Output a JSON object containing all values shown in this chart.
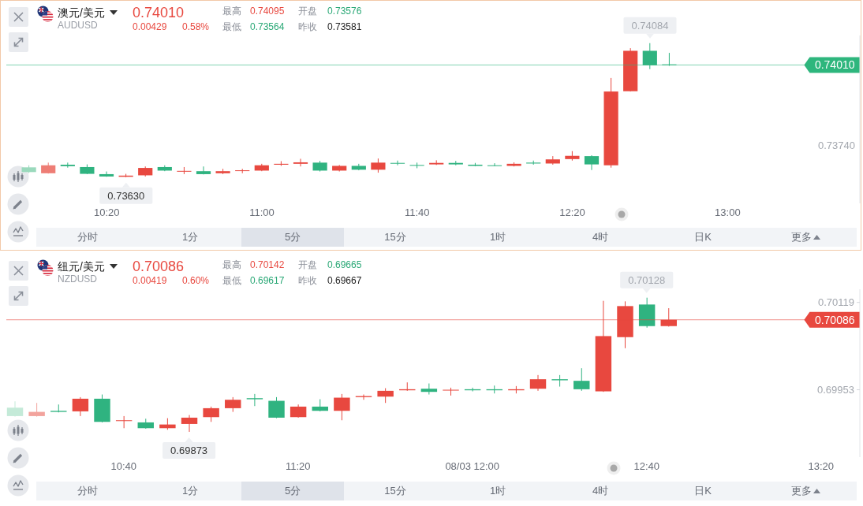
{
  "chart_data": [
    {
      "type": "candlestick",
      "title": "澳元/美元",
      "subtitle": "AUDUSD",
      "x": [
        10,
        10.0833,
        10.1667,
        10.25,
        10.3333,
        10.4167,
        10.5,
        10.5833,
        10.6667,
        10.75,
        10.8333,
        10.9167,
        11,
        11.0833,
        11.1667,
        11.25,
        11.3333,
        11.4167,
        11.5,
        11.5833,
        11.6667,
        11.75,
        11.8333,
        11.9167,
        12,
        12.0833,
        12.1667,
        12.25,
        12.3333,
        12.4167,
        12.5,
        12.5833,
        12.6667,
        12.75
      ],
      "ohlc": [
        [
          0.73663,
          0.7367,
          0.73644,
          0.73647
        ],
        [
          0.73643,
          0.73679,
          0.73642,
          0.7367
        ],
        [
          0.73672,
          0.73679,
          0.73662,
          0.73667
        ],
        [
          0.73664,
          0.73673,
          0.7364,
          0.73641
        ],
        [
          0.7364,
          0.73649,
          0.73631,
          0.73632
        ],
        [
          0.73631,
          0.73641,
          0.7363,
          0.73635
        ],
        [
          0.73636,
          0.73666,
          0.73632,
          0.73661
        ],
        [
          0.73664,
          0.7367,
          0.7365,
          0.73652
        ],
        [
          0.73649,
          0.73664,
          0.7364,
          0.73651
        ],
        [
          0.7365,
          0.73666,
          0.73639,
          0.7364
        ],
        [
          0.73643,
          0.73658,
          0.7364,
          0.7365
        ],
        [
          0.73651,
          0.73658,
          0.73643,
          0.73653
        ],
        [
          0.73652,
          0.73675,
          0.7365,
          0.7367
        ],
        [
          0.73672,
          0.73684,
          0.73668,
          0.73675
        ],
        [
          0.73675,
          0.73692,
          0.73666,
          0.7368
        ],
        [
          0.73679,
          0.73685,
          0.73649,
          0.73652
        ],
        [
          0.73652,
          0.73671,
          0.73649,
          0.73668
        ],
        [
          0.73668,
          0.73675,
          0.73653,
          0.73655
        ],
        [
          0.73655,
          0.73693,
          0.73645,
          0.73679
        ],
        [
          0.73678,
          0.73686,
          0.7367,
          0.73676
        ],
        [
          0.73671,
          0.73679,
          0.7366,
          0.73669
        ],
        [
          0.73673,
          0.73687,
          0.73671,
          0.73678
        ],
        [
          0.73678,
          0.73685,
          0.7367,
          0.73673
        ],
        [
          0.73672,
          0.73678,
          0.73667,
          0.73668
        ],
        [
          0.7367,
          0.73677,
          0.73667,
          0.73669
        ],
        [
          0.73668,
          0.7368,
          0.73666,
          0.73675
        ],
        [
          0.73679,
          0.73686,
          0.73672,
          0.73676
        ],
        [
          0.73676,
          0.73701,
          0.73672,
          0.7369
        ],
        [
          0.73691,
          0.73718,
          0.73686,
          0.73702
        ],
        [
          0.73701,
          0.73704,
          0.73654,
          0.73673
        ],
        [
          0.7367,
          0.73966,
          0.73662,
          0.7392
        ],
        [
          0.73921,
          0.74067,
          0.7392,
          0.74058
        ],
        [
          0.74058,
          0.74084,
          0.73996,
          0.74009
        ],
        [
          0.74012,
          0.74051,
          0.74007,
          0.7401
        ]
      ],
      "colors": [
        "#9ad9bc",
        "#ee7d75",
        "#2fb380",
        "#2fb380",
        "#2fb380",
        "#e8483f",
        "#e8483f",
        "#2fb380",
        "#e8483f",
        "#2fb380",
        "#e8483f",
        "#e8483f",
        "#e8483f",
        "#e8483f",
        "#e8483f",
        "#2fb380",
        "#e8483f",
        "#2fb380",
        "#e8483f",
        "#2fb380",
        "#2fb380",
        "#e8483f",
        "#2fb380",
        "#2fb380",
        "#2fb380",
        "#e8483f",
        "#2fb380",
        "#e8483f",
        "#e8483f",
        "#2fb380",
        "#e8483f",
        "#e8483f",
        "#2fb380",
        "#2fb380"
      ],
      "xlim": [
        9.9024,
        13.5678
      ],
      "xticks": [
        {
          "value": 10.3333,
          "label": "10:20"
        },
        {
          "value": 11,
          "label": "11:00"
        },
        {
          "value": 11.6667,
          "label": "11:40"
        },
        {
          "value": 12.3333,
          "label": "12:20"
        },
        {
          "value": 13,
          "label": "13:00"
        }
      ],
      "ylim": [
        0.73541,
        0.7411
      ],
      "ref_lines": [
        {
          "axis": "y",
          "value": 0.7401,
          "label": "0.74010",
          "color": "#2eb67d"
        }
      ],
      "annotations": [
        "0.74010",
        "0.00429",
        "0.58%",
        "最高",
        "0.74095",
        "开盘",
        "0.73576",
        "最低",
        "0.73564",
        "昨收",
        "0.73581",
        "分时",
        "1分",
        "5分",
        "15分",
        "1时",
        "4时",
        "日K",
        "更多",
        "0.73740",
        {
          "text": "0.74084",
          "x": 12.6667,
          "y": 0.74084
        },
        {
          "text": "0.73630",
          "x": 10.4167,
          "y": 0.7363
        }
      ]
    },
    {
      "type": "candlestick",
      "title": "纽元/美元",
      "subtitle": "NZDUSD",
      "x": [
        10.25,
        10.3333,
        10.4167,
        10.5,
        10.5833,
        10.6667,
        10.75,
        10.8333,
        10.9167,
        11,
        11.0833,
        11.1667,
        11.25,
        11.3333,
        11.4167,
        11.5,
        11.5833,
        11.6667,
        11.75,
        11.8333,
        11.9167,
        12,
        12.0833,
        12.1667,
        12.25,
        12.3333,
        12.4167,
        12.5,
        12.5833,
        12.6667,
        12.75
      ],
      "ohlc": [
        [
          0.69919,
          0.69931,
          0.69902,
          0.69903
        ],
        [
          0.69903,
          0.69928,
          0.69902,
          0.69911
        ],
        [
          0.69913,
          0.69925,
          0.6991,
          0.69911
        ],
        [
          0.69912,
          0.69939,
          0.69903,
          0.69936
        ],
        [
          0.69936,
          0.69944,
          0.69891,
          0.69892
        ],
        [
          0.69894,
          0.69903,
          0.6988,
          0.69895
        ],
        [
          0.69891,
          0.69898,
          0.69879,
          0.6988
        ],
        [
          0.6988,
          0.69899,
          0.69877,
          0.69887
        ],
        [
          0.69888,
          0.69905,
          0.69873,
          0.699
        ],
        [
          0.69901,
          0.69921,
          0.69892,
          0.69918
        ],
        [
          0.69918,
          0.69939,
          0.69911,
          0.69934
        ],
        [
          0.69937,
          0.69945,
          0.69922,
          0.69935
        ],
        [
          0.69932,
          0.69939,
          0.69899,
          0.699
        ],
        [
          0.69901,
          0.69925,
          0.699,
          0.69921
        ],
        [
          0.69921,
          0.69935,
          0.69912,
          0.69913
        ],
        [
          0.69913,
          0.69945,
          0.69895,
          0.69938
        ],
        [
          0.69939,
          0.69944,
          0.69934,
          0.69941
        ],
        [
          0.6994,
          0.69956,
          0.69928,
          0.69951
        ],
        [
          0.69952,
          0.69967,
          0.69951,
          0.69954
        ],
        [
          0.69955,
          0.69965,
          0.69944,
          0.69949
        ],
        [
          0.69952,
          0.69957,
          0.69942,
          0.69953
        ],
        [
          0.69954,
          0.69957,
          0.6995,
          0.69952
        ],
        [
          0.69954,
          0.69961,
          0.69946,
          0.69952
        ],
        [
          0.69952,
          0.6996,
          0.69946,
          0.69954
        ],
        [
          0.69955,
          0.69981,
          0.69951,
          0.69973
        ],
        [
          0.69973,
          0.69981,
          0.69959,
          0.69971
        ],
        [
          0.6997,
          0.69994,
          0.69951,
          0.69954
        ],
        [
          0.6995,
          0.70122,
          0.69949,
          0.70055
        ],
        [
          0.70053,
          0.70121,
          0.70032,
          0.70112
        ],
        [
          0.70115,
          0.70128,
          0.70071,
          0.70074
        ],
        [
          0.70074,
          0.70108,
          0.70073,
          0.70086
        ]
      ],
      "colors": [
        "#c4ead8",
        "#f2a39d",
        "#2fb380",
        "#e8483f",
        "#2fb380",
        "#e8483f",
        "#2fb380",
        "#e8483f",
        "#e8483f",
        "#e8483f",
        "#e8483f",
        "#2fb380",
        "#2fb380",
        "#e8483f",
        "#2fb380",
        "#e8483f",
        "#e8483f",
        "#e8483f",
        "#e8483f",
        "#2fb380",
        "#e8483f",
        "#2fb380",
        "#2fb380",
        "#e8483f",
        "#e8483f",
        "#2fb380",
        "#2fb380",
        "#e8483f",
        "#e8483f",
        "#2fb380",
        "#e8483f"
      ],
      "xlim": [
        10.218,
        13.482
      ],
      "xticks": [
        {
          "value": 10.6667,
          "label": "10:40"
        },
        {
          "value": 11.3333,
          "label": "11:20"
        },
        {
          "value": 12,
          "label": "08/03 12:00"
        },
        {
          "value": 12.6667,
          "label": "12:40"
        },
        {
          "value": 13.3333,
          "label": "13:20"
        }
      ],
      "ylim": [
        0.69825,
        0.70144
      ],
      "yticks": [
        0.70119,
        0.69953
      ],
      "ref_lines": [
        {
          "axis": "y",
          "value": 0.70086,
          "label": "0.70086",
          "color": "#e8483f"
        }
      ],
      "annotations": [
        "0.70086",
        "0.00419",
        "0.60%",
        "最高",
        "0.70142",
        "开盘",
        "0.69665",
        "最低",
        "0.69617",
        "昨收",
        "0.69667",
        "分时",
        "1分",
        "5分",
        "15分",
        "1时",
        "4时",
        "日K",
        "更多",
        {
          "text": "0.70128",
          "x": 12.6667,
          "y": 0.70128
        },
        {
          "text": "0.69873",
          "x": 10.9167,
          "y": 0.69873
        }
      ]
    }
  ]
}
